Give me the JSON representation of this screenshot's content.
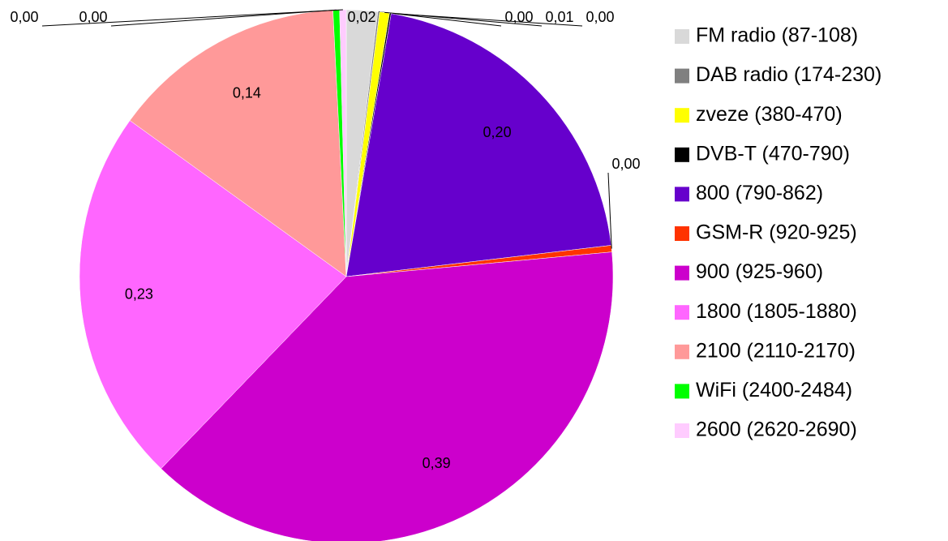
{
  "chart_data": {
    "type": "pie",
    "categories": [
      "FM radio (87-108)",
      "DAB radio (174-230)",
      "zveze (380-470)",
      "DVB-T (470-790)",
      "800 (790-862)",
      "GSM-R (920-925)",
      "900 (925-960)",
      "1800 (1805-1880)",
      "2100 (2110-2170)",
      "WiFi (2400-2484)",
      "2600 (2620-2690)"
    ],
    "values": [
      0.019,
      0.001,
      0.006,
      0.001,
      0.205,
      0.004,
      0.388,
      0.228,
      0.143,
      0.004,
      0.004
    ],
    "value_labels": [
      "0,02",
      "0,00",
      "0,01",
      "0,00",
      "0,20",
      "0,00",
      "0,39",
      "0,23",
      "0,14",
      "0,00",
      "0,00"
    ],
    "colors": [
      "#d9d9d9",
      "#808080",
      "#ffff00",
      "#000000",
      "#6600cc",
      "#ff3300",
      "#cc00cc",
      "#ff66ff",
      "#ff9999",
      "#00ff00",
      "#ffccff"
    ],
    "legend": "right"
  }
}
